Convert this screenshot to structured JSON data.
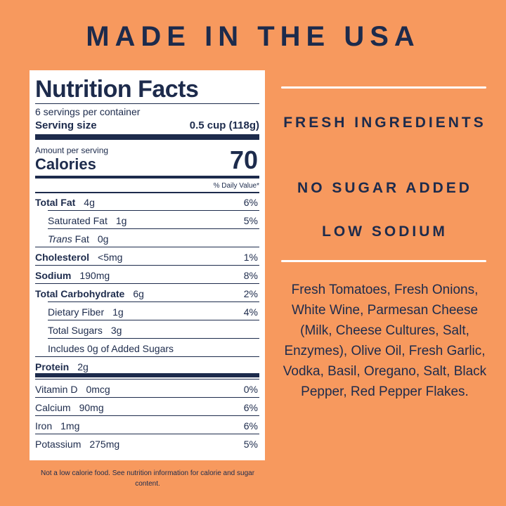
{
  "header": {
    "title": "MADE IN THE USA"
  },
  "label": {
    "title": "Nutrition Facts",
    "servings": "6 servings per container",
    "serving_size_label": "Serving size",
    "serving_size": "0.5 cup (118g)",
    "amount_per_serving": "Amount per serving",
    "calories_label": "Calories",
    "calories": "70",
    "daily_value_header": "% Daily Value*",
    "rows": [
      {
        "name": "Total Fat",
        "amount": "4g",
        "dv": "6%"
      },
      {
        "name": "Saturated Fat",
        "amount": "1g",
        "dv": "5%"
      },
      {
        "name_italic": "Trans",
        "name": "Fat",
        "amount": "0g"
      },
      {
        "name": "Cholesterol",
        "amount": "<5mg",
        "dv": "1%"
      },
      {
        "name": "Sodium",
        "amount": "190mg",
        "dv": "8%"
      },
      {
        "name": "Total Carbohydrate",
        "amount": "6g",
        "dv": "2%"
      },
      {
        "name": "Dietary Fiber",
        "amount": "1g",
        "dv": "4%"
      },
      {
        "name": "Total Sugars",
        "amount": "3g"
      },
      {
        "name": "Includes 0g of Added Sugars"
      },
      {
        "name": "Protein",
        "amount": "2g"
      },
      {
        "name": "Vitamin D",
        "amount": "0mcg",
        "dv": "0%"
      },
      {
        "name": "Calcium",
        "amount": "90mg",
        "dv": "6%"
      },
      {
        "name": "Iron",
        "amount": "1mg",
        "dv": "6%"
      },
      {
        "name": "Potassium",
        "amount": "275mg",
        "dv": "5%"
      }
    ]
  },
  "footnote": "Not a low calorie food. See nutrition information for calorie and sugar content.",
  "claims": [
    "FRESH INGREDIENTS",
    "NO SUGAR ADDED",
    "LOW SODIUM"
  ],
  "ingredients": [
    "Fresh Tomatoes, Fresh Onions,",
    "White Wine, Parmesan Cheese",
    "(Milk, Cheese Cultures, Salt,",
    "Enzymes), Olive Oil, Fresh Garlic,",
    "Vodka, Basil, Oregano, Salt, Black",
    "Pepper, Red Pepper Flakes."
  ]
}
